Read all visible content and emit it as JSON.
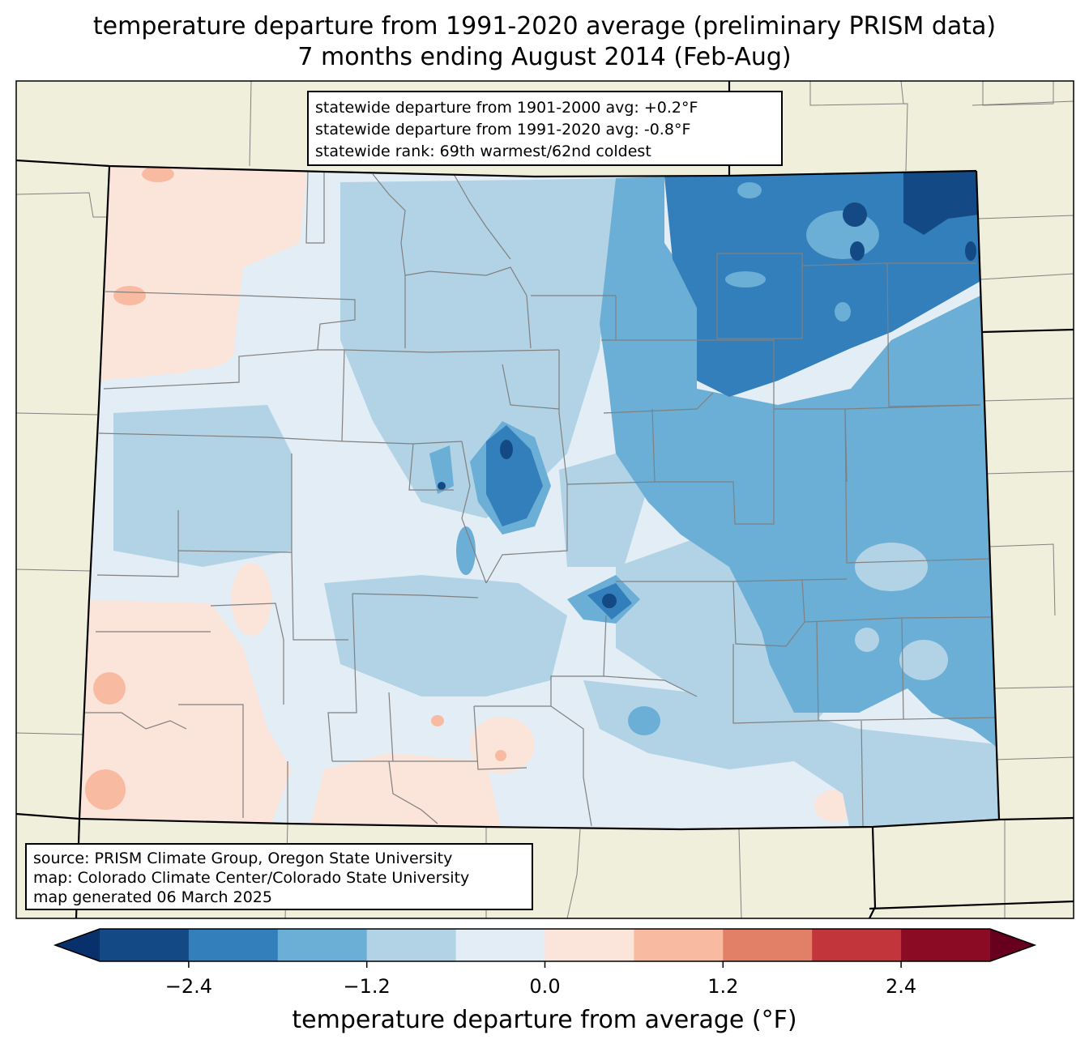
{
  "title": {
    "line1": "temperature departure from 1991-2020 average (preliminary PRISM data)",
    "line2": "7 months ending August 2014 (Feb-Aug)"
  },
  "stats": {
    "line1": "statewide departure from 1901-2000 avg: +0.2°F",
    "line2": "statewide departure from 1991-2020 avg: -0.8°F",
    "line3": "statewide rank: 69th warmest/62nd coldest"
  },
  "source": {
    "line1": "source: PRISM Climate Group, Oregon State University",
    "line2": "map: Colorado Climate Center/Colorado State University",
    "line3": "map generated 06 March 2025"
  },
  "colorbar": {
    "label": "temperature departure from average (°F)",
    "ticks": [
      "−2.4",
      "−1.2",
      "0.0",
      "1.2",
      "2.4"
    ],
    "tick_values": [
      -2.4,
      -1.2,
      0.0,
      1.2,
      2.4
    ],
    "bounds": [
      -3.0,
      3.0
    ],
    "colors": [
      "#08306b",
      "#134a86",
      "#337fbb",
      "#6baed6",
      "#b2d3e6",
      "#e3edf5",
      "#fbe4d9",
      "#f8bba1",
      "#e27f67",
      "#c2353a",
      "#8b0b24",
      "#67001f"
    ]
  },
  "colors": {
    "land_background": "#f0efdc",
    "state_border": "#000000",
    "county_border": "#808080"
  }
}
